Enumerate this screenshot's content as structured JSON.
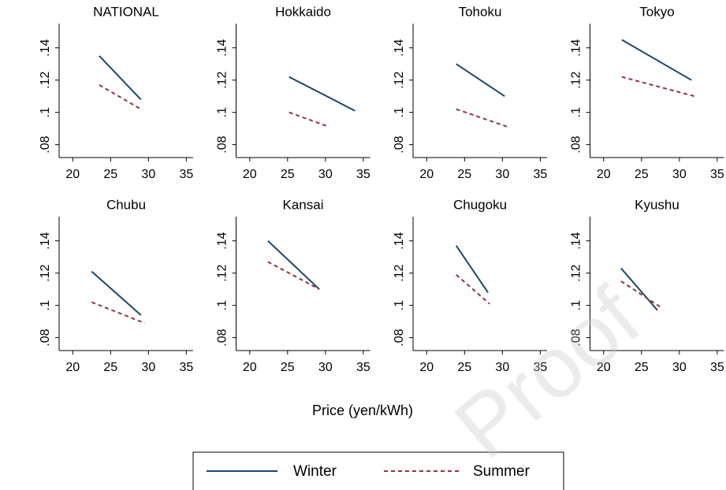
{
  "x_label": "Price (yen/kWh)",
  "watermark": "Proof",
  "chart_data": [
    {
      "type": "line",
      "title": "NATIONAL",
      "xlim": [
        18.2,
        35.9
      ],
      "xticks": [
        20,
        25,
        30,
        35
      ],
      "ylim": [
        0.072,
        0.155
      ],
      "yticks": [
        {
          "value": 0.08,
          "label": ".08"
        },
        {
          "value": 0.1,
          "label": ".1"
        },
        {
          "value": 0.12,
          "label": ".12"
        },
        {
          "value": 0.14,
          "label": ".14"
        }
      ],
      "series": [
        {
          "name": "Winter",
          "color": "#1a476f",
          "linestyle": "solid",
          "x": [
            23.5,
            29
          ],
          "values": [
            0.135,
            0.108
          ]
        },
        {
          "name": "Summer",
          "color": "#90353b",
          "linestyle": "dashed",
          "x": [
            23.5,
            29
          ],
          "values": [
            0.117,
            0.102
          ]
        }
      ]
    },
    {
      "type": "line",
      "title": "Hokkaido",
      "xlim": [
        18.2,
        35.9
      ],
      "xticks": [
        20,
        25,
        30,
        35
      ],
      "ylim": [
        0.072,
        0.155
      ],
      "yticks": [
        {
          "value": 0.08,
          "label": ".08"
        },
        {
          "value": 0.1,
          "label": ".1"
        },
        {
          "value": 0.12,
          "label": ".12"
        },
        {
          "value": 0.14,
          "label": ".14"
        }
      ],
      "series": [
        {
          "name": "Winter",
          "color": "#1a476f",
          "linestyle": "solid",
          "x": [
            25.2,
            33.9
          ],
          "values": [
            0.122,
            0.101
          ]
        },
        {
          "name": "Summer",
          "color": "#90353b",
          "linestyle": "dashed",
          "x": [
            25.2,
            30.5
          ],
          "values": [
            0.1,
            0.091
          ]
        }
      ]
    },
    {
      "type": "line",
      "title": "Tohoku",
      "xlim": [
        18.2,
        35.9
      ],
      "xticks": [
        20,
        25,
        30,
        35
      ],
      "ylim": [
        0.072,
        0.155
      ],
      "yticks": [
        {
          "value": 0.08,
          "label": ".08"
        },
        {
          "value": 0.1,
          "label": ".1"
        },
        {
          "value": 0.12,
          "label": ".12"
        },
        {
          "value": 0.14,
          "label": ".14"
        }
      ],
      "series": [
        {
          "name": "Winter",
          "color": "#1a476f",
          "linestyle": "solid",
          "x": [
            23.9,
            30.3
          ],
          "values": [
            0.13,
            0.11
          ]
        },
        {
          "name": "Summer",
          "color": "#90353b",
          "linestyle": "dashed",
          "x": [
            23.9,
            30.7
          ],
          "values": [
            0.102,
            0.091
          ]
        }
      ]
    },
    {
      "type": "line",
      "title": "Tokyo",
      "xlim": [
        18.2,
        35.9
      ],
      "xticks": [
        20,
        25,
        30,
        35
      ],
      "ylim": [
        0.072,
        0.155
      ],
      "yticks": [
        {
          "value": 0.08,
          "label": ".08"
        },
        {
          "value": 0.1,
          "label": ".1"
        },
        {
          "value": 0.12,
          "label": ".12"
        },
        {
          "value": 0.14,
          "label": ".14"
        }
      ],
      "series": [
        {
          "name": "Winter",
          "color": "#1a476f",
          "linestyle": "solid",
          "x": [
            22.4,
            31.6
          ],
          "values": [
            0.145,
            0.12
          ]
        },
        {
          "name": "Summer",
          "color": "#90353b",
          "linestyle": "dashed",
          "x": [
            22.4,
            32
          ],
          "values": [
            0.122,
            0.11
          ]
        }
      ]
    },
    {
      "type": "line",
      "title": "Chubu",
      "xlim": [
        18.2,
        35.9
      ],
      "xticks": [
        20,
        25,
        30,
        35
      ],
      "ylim": [
        0.072,
        0.155
      ],
      "yticks": [
        {
          "value": 0.08,
          "label": ".08"
        },
        {
          "value": 0.1,
          "label": ".1"
        },
        {
          "value": 0.12,
          "label": ".12"
        },
        {
          "value": 0.14,
          "label": ".14"
        }
      ],
      "series": [
        {
          "name": "Winter",
          "color": "#1a476f",
          "linestyle": "solid",
          "x": [
            22.5,
            29
          ],
          "values": [
            0.121,
            0.094
          ]
        },
        {
          "name": "Summer",
          "color": "#90353b",
          "linestyle": "dashed",
          "x": [
            22.5,
            29.5
          ],
          "values": [
            0.102,
            0.089
          ]
        }
      ]
    },
    {
      "type": "line",
      "title": "Kansai",
      "xlim": [
        18.2,
        35.9
      ],
      "xticks": [
        20,
        25,
        30,
        35
      ],
      "ylim": [
        0.072,
        0.155
      ],
      "yticks": [
        {
          "value": 0.08,
          "label": ".08"
        },
        {
          "value": 0.1,
          "label": ".1"
        },
        {
          "value": 0.12,
          "label": ".12"
        },
        {
          "value": 0.14,
          "label": ".14"
        }
      ],
      "series": [
        {
          "name": "Winter",
          "color": "#1a476f",
          "linestyle": "solid",
          "x": [
            22.4,
            29.2
          ],
          "values": [
            0.14,
            0.11
          ]
        },
        {
          "name": "Summer",
          "color": "#90353b",
          "linestyle": "dashed",
          "x": [
            22.4,
            29.2
          ],
          "values": [
            0.127,
            0.11
          ]
        }
      ]
    },
    {
      "type": "line",
      "title": "Chugoku",
      "xlim": [
        18.2,
        35.9
      ],
      "xticks": [
        20,
        25,
        30,
        35
      ],
      "ylim": [
        0.072,
        0.155
      ],
      "yticks": [
        {
          "value": 0.08,
          "label": ".08"
        },
        {
          "value": 0.1,
          "label": ".1"
        },
        {
          "value": 0.12,
          "label": ".12"
        },
        {
          "value": 0.14,
          "label": ".14"
        }
      ],
      "series": [
        {
          "name": "Winter",
          "color": "#1a476f",
          "linestyle": "solid",
          "x": [
            23.9,
            28.1
          ],
          "values": [
            0.137,
            0.108
          ]
        },
        {
          "name": "Summer",
          "color": "#90353b",
          "linestyle": "dashed",
          "x": [
            23.9,
            28.3
          ],
          "values": [
            0.119,
            0.101
          ]
        }
      ]
    },
    {
      "type": "line",
      "title": "Kyushu",
      "xlim": [
        18.2,
        35.9
      ],
      "xticks": [
        20,
        25,
        30,
        35
      ],
      "ylim": [
        0.072,
        0.155
      ],
      "yticks": [
        {
          "value": 0.08,
          "label": ".08"
        },
        {
          "value": 0.1,
          "label": ".1"
        },
        {
          "value": 0.12,
          "label": ".12"
        },
        {
          "value": 0.14,
          "label": ".14"
        }
      ],
      "series": [
        {
          "name": "Winter",
          "color": "#1a476f",
          "linestyle": "solid",
          "x": [
            22.3,
            27.1
          ],
          "values": [
            0.123,
            0.097
          ]
        },
        {
          "name": "Summer",
          "color": "#90353b",
          "linestyle": "dashed",
          "x": [
            22.3,
            27.5
          ],
          "values": [
            0.115,
            0.099
          ]
        }
      ]
    }
  ]
}
